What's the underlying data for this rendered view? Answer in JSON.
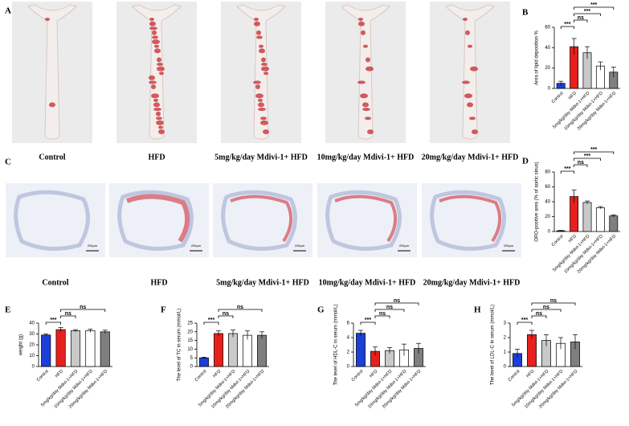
{
  "image_panels": [
    {
      "panel": "A",
      "captions": [
        "Control",
        "HFD",
        "5mg/kg/day Mdivi-1+ HFD",
        "10mg/kg/day Mdivi-1+ HFD",
        "20mg/kg/day Mdivi-1+ HFD"
      ]
    },
    {
      "panel": "C",
      "captions": [
        "Control",
        "HFD",
        "5mg/kg/day Mdivi-1+ HFD",
        "10mg/kg/day Mdivi-1+ HFD",
        "20mg/kg/day Mdivi-1+ HFD"
      ],
      "scale_bar": "200μm"
    }
  ],
  "chart_data": [
    {
      "type": "bar",
      "panel": "B",
      "y_label": "Area of lipid deposition %",
      "categories": [
        "Control",
        "HFD",
        "5mg/kg/day Mdivi-1+HFD",
        "10mg/kg/day Mdivi-1+HFD",
        "20mg/kg/day Mdivi-1+HFD"
      ],
      "values": [
        5,
        41,
        35,
        22,
        16
      ],
      "errors": [
        2,
        8,
        6,
        4,
        5
      ],
      "colors": [
        "#1c3fd8",
        "#e8201c",
        "#c9c9c9",
        "#ffffff",
        "#7f7f7f"
      ],
      "ylim": [
        0,
        60
      ],
      "yticks": [
        0,
        20,
        40,
        60
      ],
      "comparisons": [
        {
          "between": [
            0,
            1
          ],
          "label": "***"
        },
        {
          "between": [
            1,
            2
          ],
          "label": "ns"
        },
        {
          "between": [
            1,
            3
          ],
          "label": "***"
        },
        {
          "between": [
            1,
            4
          ],
          "label": "***"
        }
      ]
    },
    {
      "type": "bar",
      "panel": "D",
      "y_label": "ORO-positive area (% of aortic sinus)",
      "categories": [
        "Control",
        "HFD",
        "5mg/kg/day Mdivi-1+HFD",
        "10mg/kg/day Mdivi-1+HFD",
        "20mg/kg/day Mdivi-1+HFD"
      ],
      "values": [
        1,
        47,
        39,
        32,
        21
      ],
      "errors": [
        0.5,
        9,
        2,
        1.5,
        1.5
      ],
      "colors": [
        "#1c3fd8",
        "#e8201c",
        "#c9c9c9",
        "#ffffff",
        "#7f7f7f"
      ],
      "ylim": [
        0,
        80
      ],
      "yticks": [
        0,
        20,
        40,
        60,
        80
      ],
      "comparisons": [
        {
          "between": [
            0,
            1
          ],
          "label": "***"
        },
        {
          "between": [
            1,
            2
          ],
          "label": "ns"
        },
        {
          "between": [
            1,
            3
          ],
          "label": "***"
        },
        {
          "between": [
            1,
            4
          ],
          "label": "***"
        }
      ]
    },
    {
      "type": "bar",
      "panel": "E",
      "y_label": "weight (g)",
      "categories": [
        "Control",
        "HFD",
        "5mg/kg/day Mdivi-1+HFD",
        "10mg/kg/day Mdivi-1+HFD",
        "20mg/kg/day Mdivi-1+HFD"
      ],
      "values": [
        29,
        34,
        33,
        33,
        32
      ],
      "errors": [
        1,
        2,
        1,
        1.5,
        1.5
      ],
      "colors": [
        "#1c3fd8",
        "#e8201c",
        "#c9c9c9",
        "#ffffff",
        "#7f7f7f"
      ],
      "ylim": [
        0,
        40
      ],
      "yticks": [
        0,
        10,
        20,
        30,
        40
      ],
      "comparisons": [
        {
          "between": [
            0,
            1
          ],
          "label": "***"
        },
        {
          "between": [
            1,
            2
          ],
          "label": "ns"
        },
        {
          "between": [
            1,
            4
          ],
          "label": "ns"
        }
      ]
    },
    {
      "type": "bar",
      "panel": "F",
      "y_label": "The level of TC in serum (mmol/L)",
      "categories": [
        "Control",
        "HFD",
        "5mg/kg/day Mdivi-1+HFD",
        "10mg/kg/day Mdivi-1+HFD",
        "20mg/kg/day Mdivi-1+HFD"
      ],
      "values": [
        5,
        19,
        19,
        18,
        18
      ],
      "errors": [
        0.4,
        1.5,
        2,
        2.5,
        2
      ],
      "colors": [
        "#1c3fd8",
        "#e8201c",
        "#c9c9c9",
        "#ffffff",
        "#7f7f7f"
      ],
      "ylim": [
        0,
        25
      ],
      "yticks": [
        0,
        5,
        10,
        15,
        20,
        25
      ],
      "comparisons": [
        {
          "between": [
            0,
            1
          ],
          "label": "***"
        },
        {
          "between": [
            1,
            2
          ],
          "label": "ns"
        },
        {
          "between": [
            1,
            4
          ],
          "label": "ns"
        }
      ]
    },
    {
      "type": "bar",
      "panel": "G",
      "y_label": "The level of HDL-C in serum (mmol/L)",
      "categories": [
        "Control",
        "HFD",
        "5mg/kg/day Mdivi-1+HFD",
        "10mg/kg/day Mdivi-1+HFD",
        "20mg/kg/day Mdivi-1+HFD"
      ],
      "values": [
        4.6,
        2.1,
        2.2,
        2.3,
        2.5
      ],
      "errors": [
        0.4,
        0.6,
        0.4,
        0.8,
        0.7
      ],
      "colors": [
        "#1c3fd8",
        "#e8201c",
        "#c9c9c9",
        "#ffffff",
        "#7f7f7f"
      ],
      "ylim": [
        0,
        6
      ],
      "yticks": [
        0,
        2,
        4,
        6
      ],
      "comparisons": [
        {
          "between": [
            0,
            1
          ],
          "label": "***"
        },
        {
          "between": [
            1,
            2
          ],
          "label": "ns"
        },
        {
          "between": [
            1,
            3
          ],
          "label": "ns"
        },
        {
          "between": [
            1,
            4
          ],
          "label": "ns"
        }
      ]
    },
    {
      "type": "bar",
      "panel": "H",
      "y_label": "The level of LDL-C in serum (mmol/L)",
      "categories": [
        "Control",
        "HFD",
        "5mg/kg/day Mdivi-1+HFD",
        "10mg/kg/day Mdivi-1+HFD",
        "20mg/kg/day Mdivi-1+HFD"
      ],
      "values": [
        0.9,
        2.2,
        1.8,
        1.6,
        1.7
      ],
      "errors": [
        0.3,
        0.3,
        0.4,
        0.4,
        0.5
      ],
      "colors": [
        "#1c3fd8",
        "#e8201c",
        "#c9c9c9",
        "#ffffff",
        "#7f7f7f"
      ],
      "ylim": [
        0,
        3
      ],
      "yticks": [
        0,
        1,
        2,
        3
      ],
      "comparisons": [
        {
          "between": [
            0,
            1
          ],
          "label": "***"
        },
        {
          "between": [
            1,
            2
          ],
          "label": "ns"
        },
        {
          "between": [
            1,
            3
          ],
          "label": "ns"
        },
        {
          "between": [
            1,
            4
          ],
          "label": "ns"
        }
      ]
    }
  ]
}
